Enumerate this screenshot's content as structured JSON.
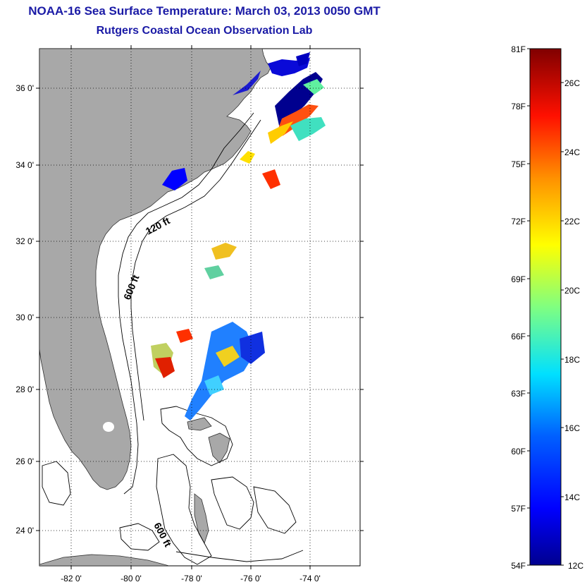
{
  "title": "NOAA-16 Sea Surface Temperature:  March 03, 2013 0050 GMT",
  "subtitle": "Rutgers Coastal Ocean Observation Lab",
  "map": {
    "lat_ticks": [
      "36 0'",
      "34 0'",
      "32 0'",
      "30 0'",
      "28 0'",
      "26 0'",
      "24 0'"
    ],
    "lon_ticks": [
      "-82 0'",
      "-80 0'",
      "-78 0'",
      "-76 0'",
      "-74 0'"
    ],
    "contour_labels": [
      "120 ft",
      "600 ft",
      "600 ft"
    ],
    "land_color": "#a8a8a8"
  },
  "colorbar": {
    "fahrenheit_labels": [
      "81F",
      "78F",
      "75F",
      "72F",
      "69F",
      "66F",
      "63F",
      "60F",
      "57F",
      "54F"
    ],
    "celsius_labels": [
      "26C",
      "24C",
      "22C",
      "20C",
      "18C",
      "16C",
      "14C",
      "12C"
    ],
    "colors": [
      "#00008f",
      "#0000ff",
      "#0080ff",
      "#00ffff",
      "#80ff80",
      "#ffff00",
      "#ff8000",
      "#ff0000",
      "#800000"
    ]
  }
}
